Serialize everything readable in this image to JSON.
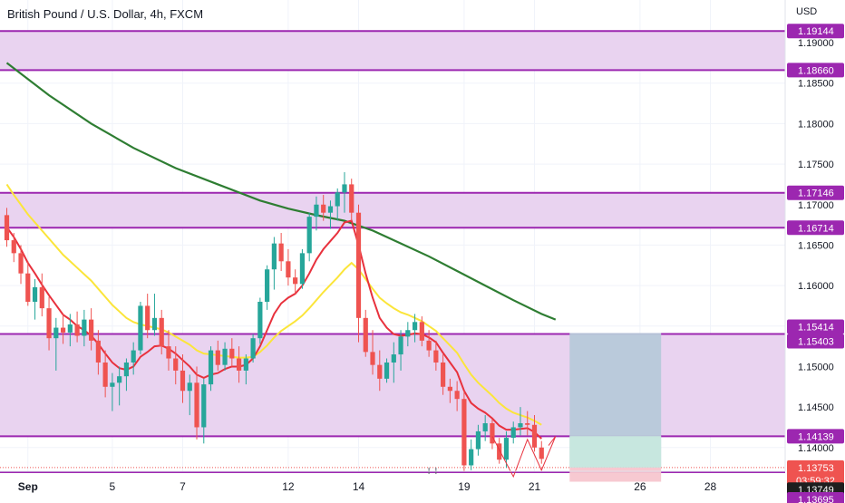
{
  "header": {
    "title": "British Pound / U.S. Dollar, 4h, FXCM",
    "currency": "USD"
  },
  "colors": {
    "zone_fill": "#e9d3f0",
    "zone_line": "#9c27b0",
    "level_tag": "#9c27b0",
    "up_candle": "#26a69a",
    "down_candle": "#ef5350",
    "ema_fast": "#e8313d",
    "ema_mid": "#fbe53a",
    "ema_slow": "#2e7d32",
    "profit_fill": "#b7c9d9",
    "profit_fill2": "#c9eadf",
    "loss_fill": "#f7c6cf",
    "price_tag": "#ef5350",
    "grid": "#f0f3fa",
    "axis_text": "#131722"
  },
  "chart_data": {
    "type": "candlestick",
    "title": "British Pound / U.S. Dollar, 4h, FXCM",
    "ylim": [
      1.1355,
      1.1937
    ],
    "y_ticks": [
      "1.19000",
      "1.18500",
      "1.18000",
      "1.17500",
      "1.17000",
      "1.16500",
      "1.16000",
      "1.15500",
      "1.15000",
      "1.14500",
      "1.14000"
    ],
    "x_ticks": [
      {
        "label": "Sep",
        "i": 3
      },
      {
        "label": "5",
        "i": 15
      },
      {
        "label": "7",
        "i": 25
      },
      {
        "label": "12",
        "i": 40
      },
      {
        "label": "14",
        "i": 50
      },
      {
        "label": "19",
        "i": 65
      },
      {
        "label": "21",
        "i": 75
      },
      {
        "label": "26",
        "i": 90
      },
      {
        "label": "28",
        "i": 100
      }
    ],
    "candles": [
      [
        1.1687,
        1.1696,
        1.1648,
        1.1656
      ],
      [
        1.1656,
        1.1665,
        1.1629,
        1.164
      ],
      [
        1.164,
        1.165,
        1.1602,
        1.1615
      ],
      [
        1.1615,
        1.163,
        1.1575,
        1.158
      ],
      [
        1.158,
        1.1608,
        1.1558,
        1.1598
      ],
      [
        1.1598,
        1.1615,
        1.1562,
        1.1572
      ],
      [
        1.1572,
        1.1586,
        1.152,
        1.1535
      ],
      [
        1.1535,
        1.156,
        1.1495,
        1.1548
      ],
      [
        1.1548,
        1.1565,
        1.1528,
        1.1542
      ],
      [
        1.1542,
        1.1565,
        1.1525,
        1.1552
      ],
      [
        1.1552,
        1.1568,
        1.153,
        1.1538
      ],
      [
        1.1538,
        1.157,
        1.1525,
        1.1558
      ],
      [
        1.1558,
        1.1572,
        1.152,
        1.1532
      ],
      [
        1.1532,
        1.1545,
        1.149,
        1.1505
      ],
      [
        1.1505,
        1.152,
        1.1462,
        1.1475
      ],
      [
        1.1475,
        1.1492,
        1.1445,
        1.148
      ],
      [
        1.148,
        1.15,
        1.1452,
        1.1488
      ],
      [
        1.1488,
        1.151,
        1.147,
        1.1505
      ],
      [
        1.1505,
        1.153,
        1.149,
        1.152
      ],
      [
        1.152,
        1.158,
        1.1515,
        1.1575
      ],
      [
        1.1575,
        1.159,
        1.1535,
        1.1545
      ],
      [
        1.1545,
        1.159,
        1.1538,
        1.156
      ],
      [
        1.156,
        1.157,
        1.1515,
        1.1525
      ],
      [
        1.1525,
        1.1545,
        1.1495,
        1.151
      ],
      [
        1.151,
        1.1525,
        1.1478,
        1.1495
      ],
      [
        1.1495,
        1.1515,
        1.1455,
        1.147
      ],
      [
        1.147,
        1.149,
        1.144,
        1.148
      ],
      [
        1.148,
        1.15,
        1.141,
        1.1425
      ],
      [
        1.1425,
        1.1485,
        1.1405,
        1.1478
      ],
      [
        1.1478,
        1.1525,
        1.147,
        1.152
      ],
      [
        1.152,
        1.1532,
        1.1495,
        1.1502
      ],
      [
        1.1502,
        1.153,
        1.1495,
        1.1522
      ],
      [
        1.1522,
        1.1535,
        1.15,
        1.151
      ],
      [
        1.151,
        1.1525,
        1.148,
        1.1495
      ],
      [
        1.1495,
        1.1515,
        1.1478,
        1.151
      ],
      [
        1.151,
        1.154,
        1.1505,
        1.1535
      ],
      [
        1.1535,
        1.1585,
        1.1528,
        1.158
      ],
      [
        1.158,
        1.1625,
        1.157,
        1.162
      ],
      [
        1.162,
        1.166,
        1.1595,
        1.1652
      ],
      [
        1.1652,
        1.1665,
        1.1618,
        1.163
      ],
      [
        1.163,
        1.1645,
        1.16,
        1.161
      ],
      [
        1.161,
        1.162,
        1.159,
        1.1602
      ],
      [
        1.1602,
        1.1645,
        1.1596,
        1.164
      ],
      [
        1.164,
        1.169,
        1.163,
        1.1685
      ],
      [
        1.1685,
        1.171,
        1.1668,
        1.17
      ],
      [
        1.17,
        1.1712,
        1.168,
        1.169
      ],
      [
        1.169,
        1.1705,
        1.167,
        1.1698
      ],
      [
        1.1698,
        1.172,
        1.168,
        1.1715
      ],
      [
        1.1715,
        1.174,
        1.169,
        1.1725
      ],
      [
        1.1725,
        1.1732,
        1.168,
        1.169
      ],
      [
        1.169,
        1.17,
        1.153,
        1.156
      ],
      [
        1.156,
        1.157,
        1.1512,
        1.1518
      ],
      [
        1.1518,
        1.1545,
        1.149,
        1.1502
      ],
      [
        1.1502,
        1.152,
        1.147,
        1.1485
      ],
      [
        1.1485,
        1.151,
        1.148,
        1.1505
      ],
      [
        1.1505,
        1.153,
        1.148,
        1.1515
      ],
      [
        1.1515,
        1.1545,
        1.1495,
        1.1537
      ],
      [
        1.1537,
        1.1555,
        1.1525,
        1.1545
      ],
      [
        1.1545,
        1.1565,
        1.153,
        1.1555
      ],
      [
        1.1555,
        1.1562,
        1.1525,
        1.1532
      ],
      [
        1.1532,
        1.1545,
        1.1512,
        1.152
      ],
      [
        1.152,
        1.1532,
        1.1495,
        1.1505
      ],
      [
        1.1505,
        1.1515,
        1.1465,
        1.1475
      ],
      [
        1.1475,
        1.1485,
        1.1455,
        1.147
      ],
      [
        1.147,
        1.1482,
        1.1445,
        1.146
      ],
      [
        1.146,
        1.147,
        1.137,
        1.1378
      ],
      [
        1.1378,
        1.141,
        1.1372,
        1.1398
      ],
      [
        1.1398,
        1.1428,
        1.139,
        1.142
      ],
      [
        1.142,
        1.144,
        1.1408,
        1.143
      ],
      [
        1.143,
        1.1435,
        1.1398,
        1.1405
      ],
      [
        1.1405,
        1.1412,
        1.138,
        1.1385
      ],
      [
        1.1385,
        1.142,
        1.1375,
        1.1412
      ],
      [
        1.1412,
        1.1432,
        1.1405,
        1.1425
      ],
      [
        1.1425,
        1.145,
        1.1415,
        1.143
      ],
      [
        1.143,
        1.1445,
        1.1415,
        1.1428
      ],
      [
        1.1428,
        1.144,
        1.1395,
        1.14
      ],
      [
        1.14,
        1.1408,
        1.138,
        1.1386
      ]
    ],
    "ema_fast": [
      1.1672,
      1.166,
      1.1645,
      1.1628,
      1.1615,
      1.1601,
      1.1588,
      1.1576,
      1.1564,
      1.1558,
      1.155,
      1.1545,
      1.1538,
      1.1528,
      1.1516,
      1.1505,
      1.1498,
      1.1496,
      1.15,
      1.1512,
      1.1518,
      1.1525,
      1.1526,
      1.1522,
      1.1516,
      1.1508,
      1.15,
      1.149,
      1.1486,
      1.149,
      1.1492,
      1.1497,
      1.15,
      1.15,
      1.1502,
      1.151,
      1.1525,
      1.1545,
      1.1565,
      1.1578,
      1.1585,
      1.159,
      1.16,
      1.1615,
      1.1632,
      1.1645,
      1.1655,
      1.1665,
      1.1678,
      1.168,
      1.165,
      1.1615,
      1.1585,
      1.156,
      1.1548,
      1.154,
      1.1538,
      1.1539,
      1.1541,
      1.154,
      1.1536,
      1.153,
      1.1517,
      1.1505,
      1.1493,
      1.147,
      1.1455,
      1.1448,
      1.1443,
      1.1436,
      1.1427,
      1.1422,
      1.1422,
      1.1423,
      1.1424,
      1.1419,
      1.1411
    ],
    "ema_mid": [
      1.1725,
      1.1712,
      1.17,
      1.1688,
      1.1678,
      1.1668,
      1.1658,
      1.1648,
      1.1638,
      1.163,
      1.1622,
      1.1614,
      1.1606,
      1.1596,
      1.1586,
      1.1576,
      1.1568,
      1.156,
      1.1555,
      1.1552,
      1.155,
      1.1548,
      1.1546,
      1.1542,
      1.1537,
      1.1532,
      1.1527,
      1.152,
      1.1516,
      1.1515,
      1.1514,
      1.1513,
      1.1512,
      1.1511,
      1.1511,
      1.1512,
      1.1518,
      1.1526,
      1.1536,
      1.1544,
      1.155,
      1.1556,
      1.1563,
      1.1572,
      1.1582,
      1.1592,
      1.1601,
      1.161,
      1.162,
      1.1628,
      1.162,
      1.1608,
      1.1596,
      1.1585,
      1.1578,
      1.1572,
      1.1567,
      1.1564,
      1.156,
      1.1556,
      1.155,
      1.1544,
      1.1535,
      1.1526,
      1.1517,
      1.1503,
      1.149,
      1.148,
      1.1472,
      1.1464,
      1.1455,
      1.1448,
      1.1443,
      1.144,
      1.1437,
      1.1433,
      1.1428
    ],
    "ema_slow": [
      [
        0,
        1.1875
      ],
      [
        6,
        1.1835
      ],
      [
        12,
        1.18
      ],
      [
        18,
        1.177
      ],
      [
        24,
        1.1745
      ],
      [
        30,
        1.1725
      ],
      [
        36,
        1.1705
      ],
      [
        40,
        1.1695
      ],
      [
        44,
        1.1687
      ],
      [
        48,
        1.168
      ],
      [
        52,
        1.1668
      ],
      [
        56,
        1.1652
      ],
      [
        60,
        1.1636
      ],
      [
        64,
        1.1618
      ],
      [
        68,
        1.16
      ],
      [
        72,
        1.1582
      ],
      [
        76,
        1.1565
      ],
      [
        78,
        1.1558
      ]
    ],
    "zones": [
      {
        "top": 1.19144,
        "bottom": 1.1866
      },
      {
        "top": 1.17146,
        "bottom": 1.16714
      },
      {
        "top": 1.15403,
        "bottom": 1.14139
      }
    ],
    "lines": [
      {
        "value": 1.13695,
        "dotted": false
      },
      {
        "value": 1.13753,
        "dotted": true
      }
    ],
    "position": {
      "from": 80,
      "to": 93,
      "entry": 1.13753,
      "target": 1.15414,
      "stop": 1.13578
    },
    "markers": [
      {
        "i": 60,
        "value": 1.1371
      },
      {
        "i": 61,
        "value": 1.1371
      }
    ],
    "price_labels": [
      {
        "text": "1.19144",
        "value": 1.19144,
        "style": "level"
      },
      {
        "text": "1.18660",
        "value": 1.1866,
        "style": "level"
      },
      {
        "text": "1.17146",
        "value": 1.17146,
        "style": "level"
      },
      {
        "text": "1.16714",
        "value": 1.16714,
        "style": "level"
      },
      {
        "text": "1.15414",
        "value": 1.15414,
        "style": "level"
      },
      {
        "text": "1.15403",
        "value": 1.15403,
        "style": "level"
      },
      {
        "text": "1.14139",
        "value": 1.14139,
        "style": "level"
      },
      {
        "text": "1.13753",
        "sub": "03:59:32",
        "value": 1.13753,
        "style": "price"
      },
      {
        "text": "1.13749",
        "value": 1.13749,
        "style": "dark"
      },
      {
        "text": "1.13695",
        "value": 1.13695,
        "style": "level"
      }
    ]
  }
}
